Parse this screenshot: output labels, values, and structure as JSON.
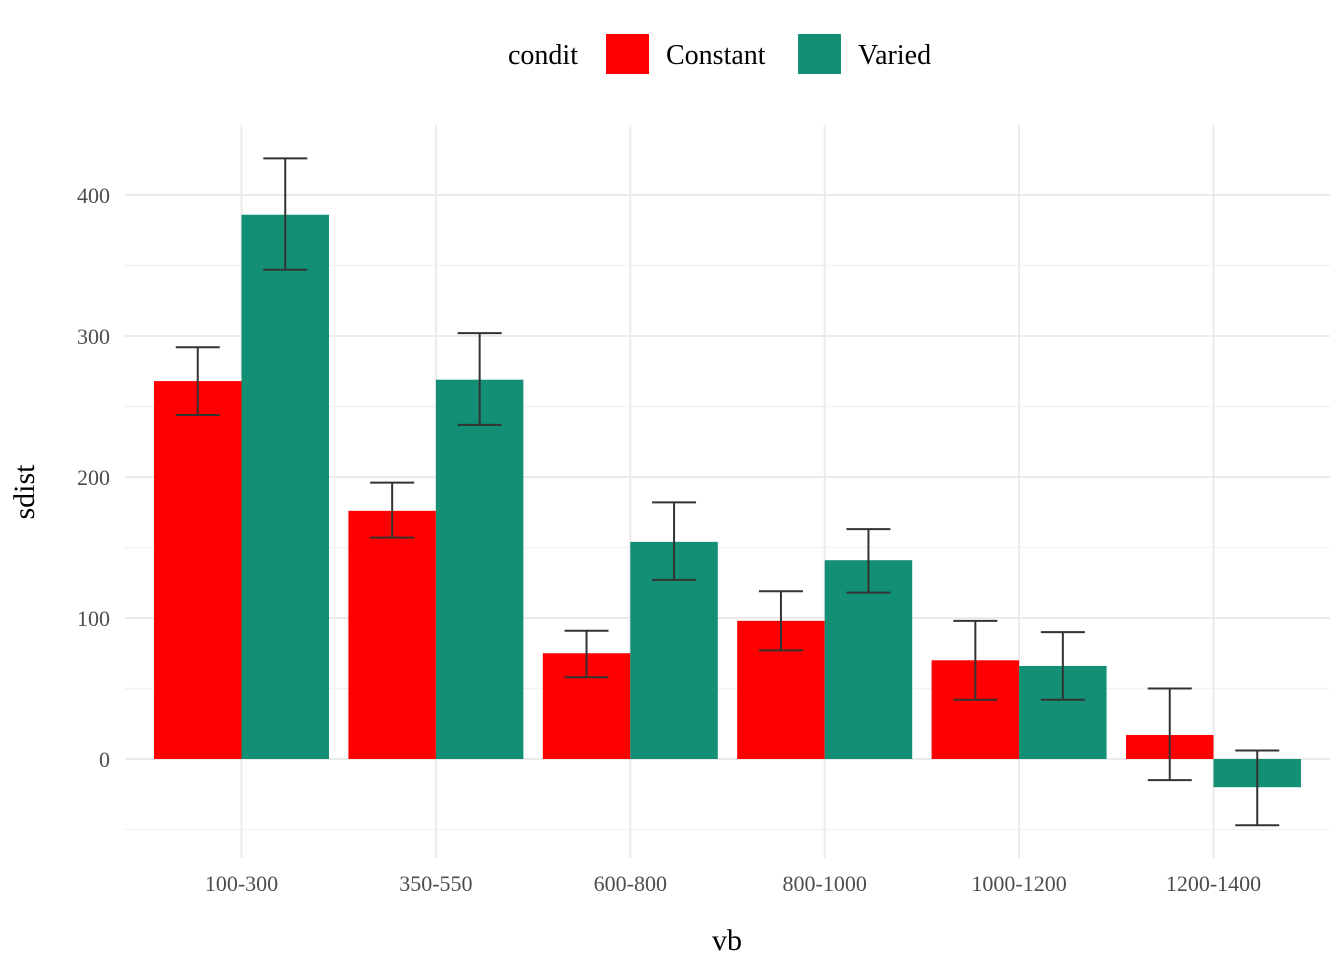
{
  "chart_data": {
    "type": "bar",
    "xlabel": "vb",
    "ylabel": "sdist",
    "categories": [
      "100-300",
      "350-550",
      "600-800",
      "800-1000",
      "1000-1200",
      "1200-1400"
    ],
    "ylim": [
      -50,
      440
    ],
    "yticks": [
      0,
      100,
      200,
      300,
      400
    ],
    "grid": true,
    "legend": {
      "title": "condit",
      "position": "top"
    },
    "series": [
      {
        "name": "Constant",
        "color": "#ff0000",
        "values": [
          268,
          176,
          75,
          98,
          70,
          17
        ],
        "error_low": [
          244,
          157,
          58,
          77,
          42,
          -15
        ],
        "error_high": [
          292,
          196,
          91,
          119,
          98,
          50
        ]
      },
      {
        "name": "Varied",
        "color": "#138f76",
        "values": [
          386,
          269,
          154,
          141,
          66,
          -20
        ],
        "error_low": [
          347,
          237,
          127,
          118,
          42,
          -47
        ],
        "error_high": [
          426,
          302,
          182,
          163,
          90,
          6
        ]
      }
    ]
  }
}
